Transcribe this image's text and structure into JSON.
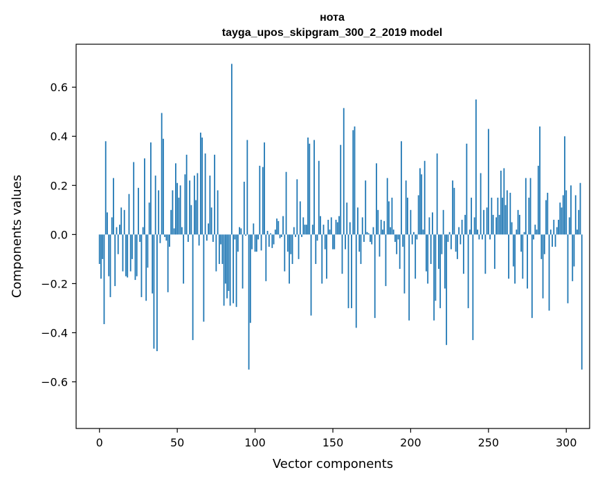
{
  "chart_data": {
    "type": "bar",
    "title": "нота",
    "subtitle": "tayga_upos_skipgram_300_2_2019 model",
    "xlabel": "Vector components",
    "ylabel": "Components values",
    "xlim": [
      -15,
      315
    ],
    "ylim": [
      -0.79,
      0.775
    ],
    "xticks": [
      0,
      50,
      100,
      150,
      200,
      250,
      300
    ],
    "xtick_labels": [
      "0",
      "50",
      "100",
      "150",
      "200",
      "250",
      "300"
    ],
    "yticks": [
      -0.6,
      -0.4,
      -0.2,
      0.0,
      0.2,
      0.4,
      0.6
    ],
    "ytick_labels": [
      "−0.6",
      "−0.4",
      "−0.2",
      "0.0",
      "0.2",
      "0.4",
      "0.6"
    ],
    "bar_color": "#1f77b4",
    "grid": false,
    "legend": false,
    "values": [
      -0.12,
      -0.18,
      -0.1,
      -0.365,
      0.38,
      0.09,
      -0.17,
      -0.255,
      0.07,
      0.23,
      -0.21,
      0.03,
      -0.08,
      0.04,
      0.11,
      -0.15,
      0.1,
      -0.17,
      -0.175,
      0.165,
      -0.15,
      -0.1,
      0.295,
      -0.185,
      -0.17,
      0.19,
      -0.03,
      -0.255,
      0.03,
      0.31,
      -0.27,
      -0.135,
      0.13,
      0.375,
      -0.24,
      -0.465,
      0.24,
      -0.475,
      0.18,
      -0.035,
      0.495,
      0.39,
      -0.01,
      -0.025,
      -0.235,
      -0.05,
      0.1,
      0.18,
      0.025,
      0.29,
      0.21,
      0.15,
      0.2,
      0.03,
      -0.2,
      0.245,
      0.325,
      -0.03,
      0.22,
      0.12,
      -0.43,
      0.24,
      0.14,
      0.25,
      -0.045,
      0.415,
      0.395,
      -0.355,
      0.33,
      -0.025,
      0.045,
      0.24,
      0.11,
      -0.03,
      0.325,
      -0.15,
      0.18,
      -0.12,
      -0.04,
      -0.12,
      -0.29,
      -0.2,
      -0.26,
      -0.23,
      -0.29,
      0.695,
      -0.28,
      -0.02,
      -0.295,
      -0.07,
      0.03,
      0.025,
      -0.22,
      0.215,
      -0.005,
      0.385,
      -0.55,
      -0.36,
      -0.06,
      0.045,
      -0.07,
      -0.07,
      -0.02,
      0.28,
      -0.065,
      0.275,
      0.375,
      -0.19,
      0.015,
      -0.05,
      0.005,
      -0.055,
      -0.04,
      0.02,
      0.065,
      0.055,
      -0.015,
      -0.01,
      0.075,
      -0.15,
      0.255,
      -0.07,
      -0.2,
      -0.08,
      -0.12,
      0.03,
      -0.01,
      0.225,
      -0.1,
      0.135,
      -0.01,
      0.07,
      0.04,
      0.04,
      0.395,
      0.37,
      -0.33,
      0.04,
      0.385,
      -0.12,
      -0.025,
      0.3,
      0.075,
      -0.2,
      0.04,
      -0.06,
      -0.18,
      0.06,
      0.02,
      0.07,
      -0.06,
      -0.06,
      0.06,
      0.05,
      0.075,
      0.365,
      -0.16,
      0.515,
      -0.06,
      0.13,
      -0.3,
      0.05,
      -0.3,
      0.425,
      0.44,
      -0.38,
      0.11,
      -0.07,
      -0.12,
      0.07,
      -0.03,
      0.22,
      0.01,
      0.005,
      -0.03,
      -0.04,
      0.03,
      -0.34,
      0.29,
      0.1,
      -0.09,
      0.06,
      0.02,
      0.055,
      -0.21,
      0.23,
      0.135,
      0.03,
      0.15,
      0.02,
      -0.03,
      -0.08,
      -0.02,
      -0.14,
      0.38,
      -0.05,
      -0.24,
      0.22,
      0.15,
      -0.35,
      0.1,
      -0.04,
      0.01,
      -0.18,
      -0.02,
      0.16,
      0.27,
      0.245,
      0.02,
      0.3,
      -0.15,
      -0.2,
      0.07,
      -0.12,
      0.09,
      -0.35,
      -0.27,
      0.33,
      -0.14,
      -0.3,
      -0.08,
      0.1,
      -0.22,
      -0.45,
      -0.03,
      0.01,
      -0.06,
      0.22,
      0.19,
      -0.07,
      -0.1,
      0.03,
      -0.04,
      0.06,
      -0.16,
      0.08,
      0.37,
      -0.3,
      0.02,
      0.15,
      -0.43,
      0.07,
      0.55,
      0.02,
      -0.02,
      0.25,
      -0.02,
      0.1,
      -0.16,
      0.11,
      0.43,
      -0.02,
      0.15,
      0.08,
      -0.14,
      0.07,
      0.15,
      0.08,
      0.26,
      0.15,
      0.27,
      0.12,
      0.18,
      -0.18,
      0.17,
      0.05,
      -0.13,
      -0.2,
      0.02,
      0.1,
      0.08,
      -0.07,
      -0.18,
      0.01,
      0.23,
      -0.22,
      0.15,
      0.23,
      -0.34,
      -0.02,
      0.04,
      0.02,
      0.28,
      0.44,
      -0.1,
      -0.26,
      -0.08,
      0.14,
      0.17,
      -0.31,
      0.02,
      -0.05,
      0.06,
      -0.05,
      0.03,
      0.06,
      0.13,
      0.11,
      0.16,
      0.4,
      0.18,
      -0.28,
      0.07,
      0.2,
      -0.19,
      -0.13,
      0.16,
      0.02,
      0.1,
      0.21,
      -0.55
    ]
  }
}
